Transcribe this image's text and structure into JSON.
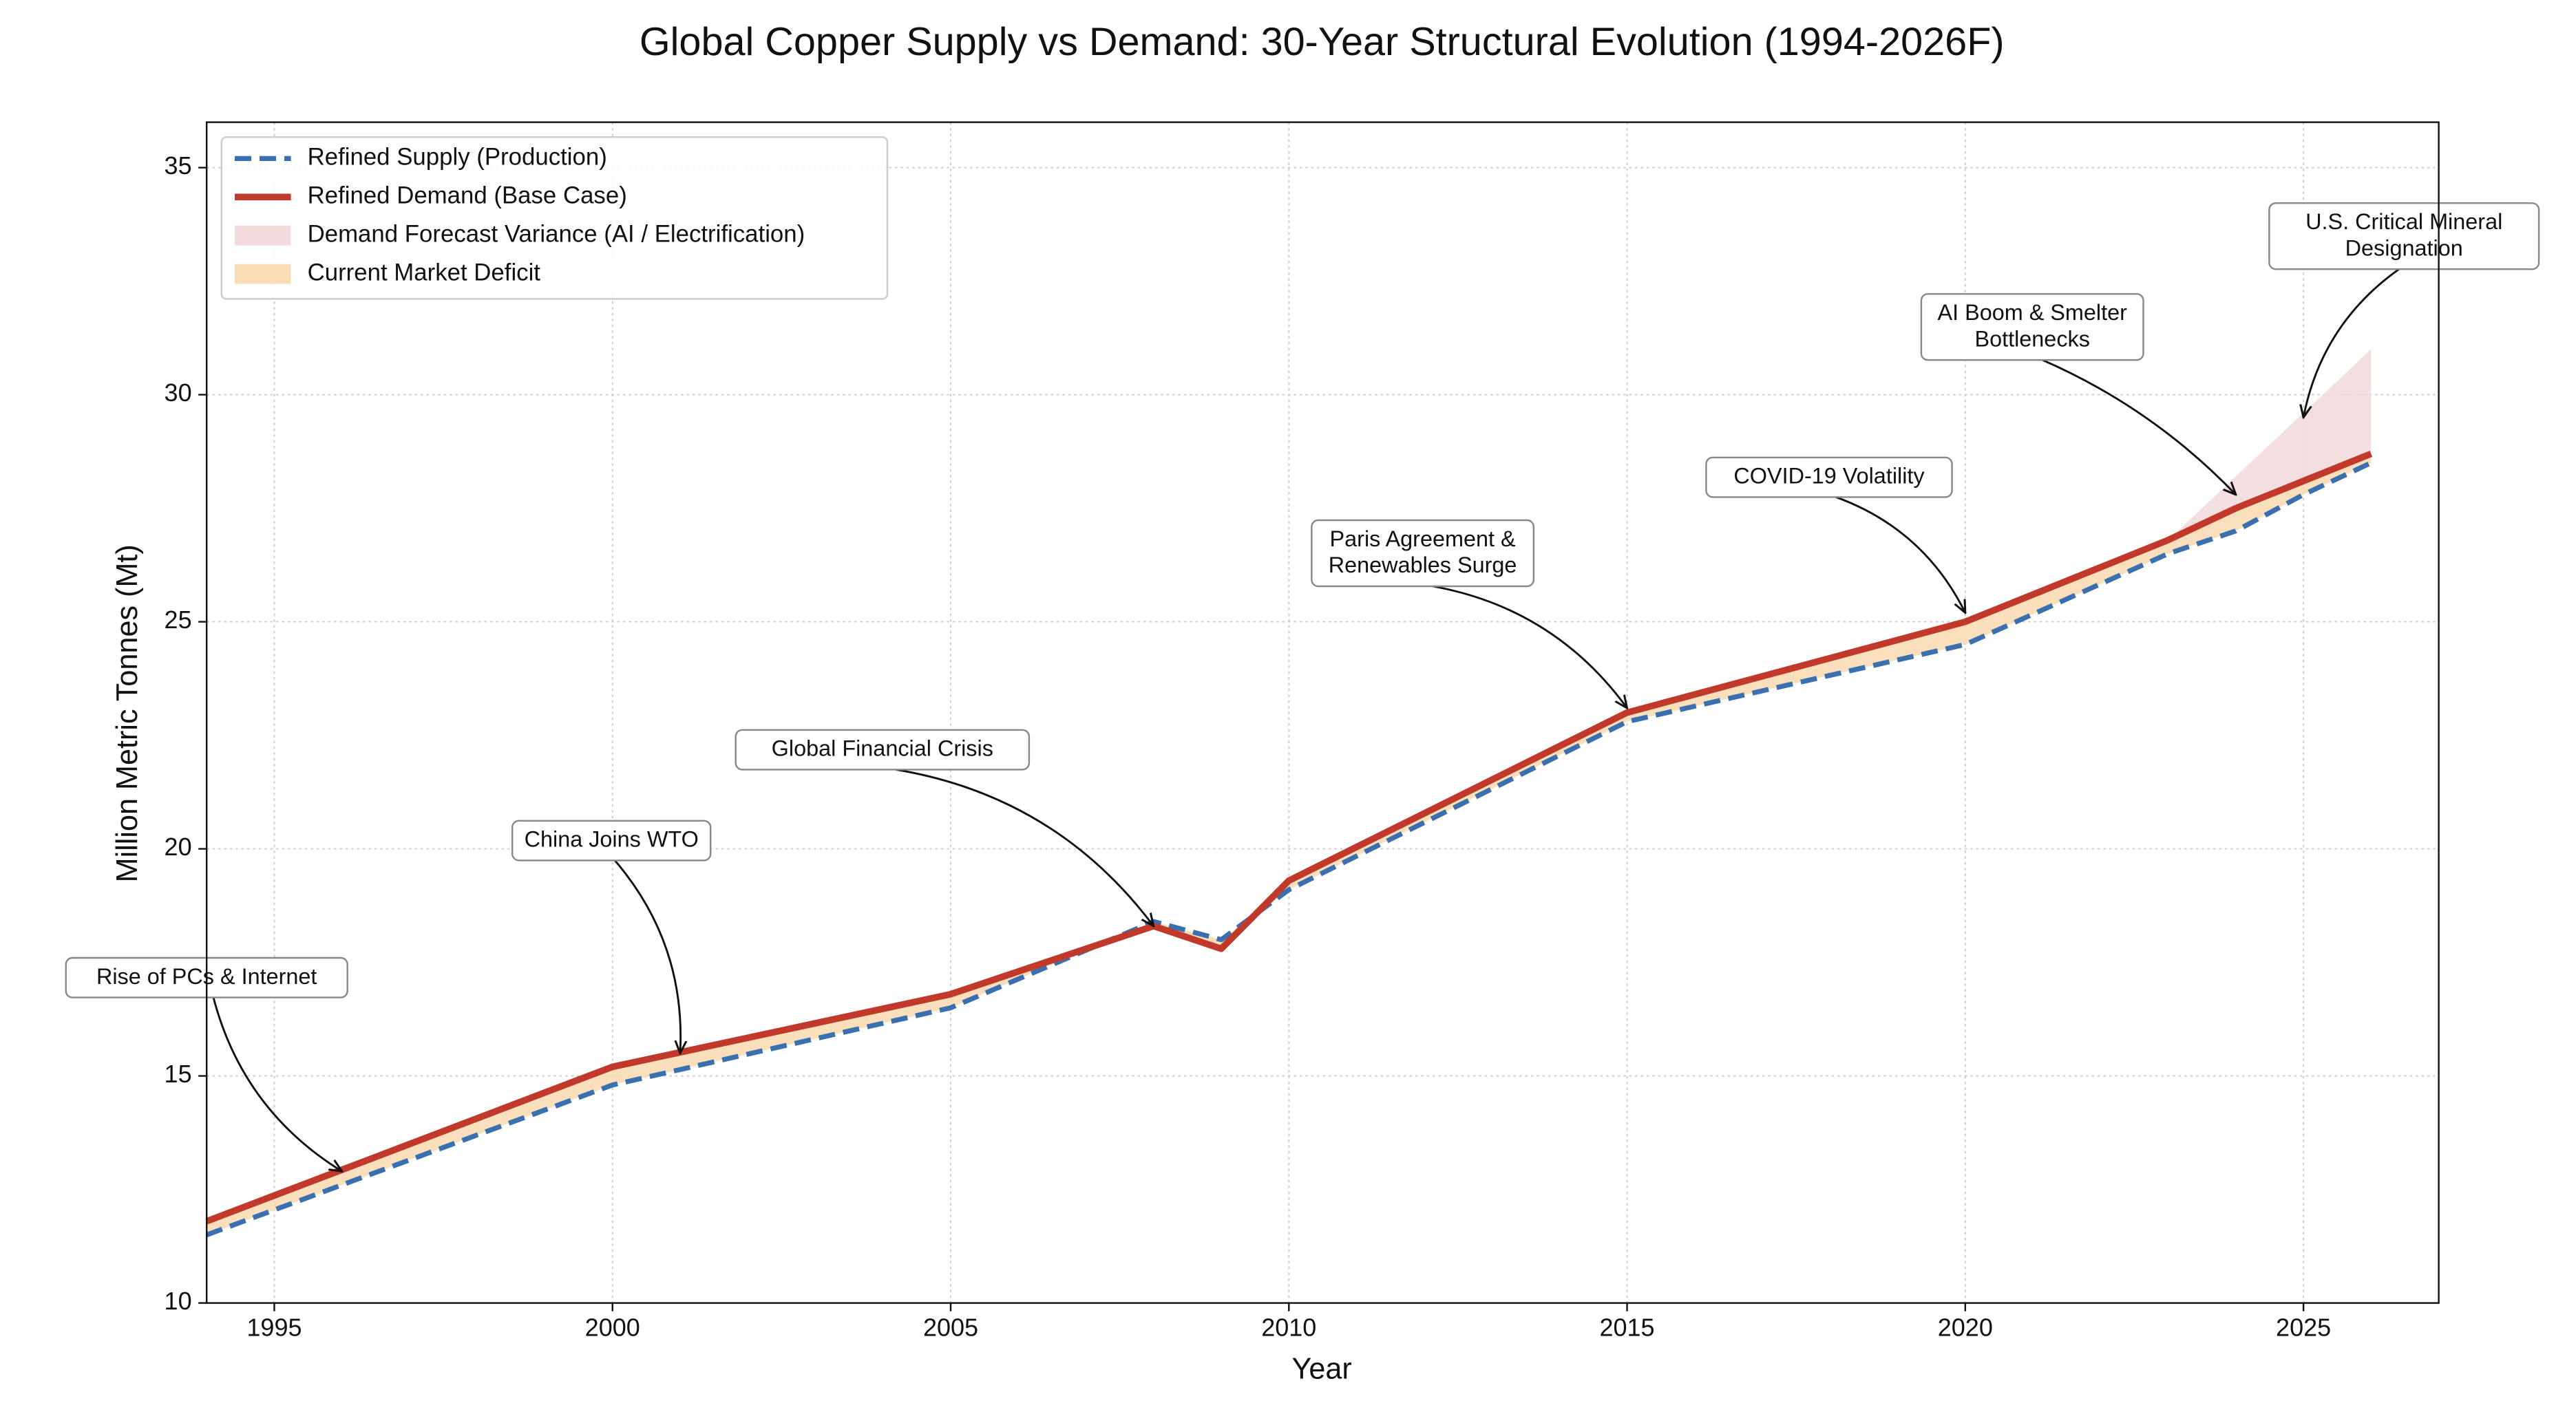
{
  "chart_data": {
    "type": "line",
    "title": "Global Copper Supply vs Demand: 30-Year Structural Evolution (1994-2026F)",
    "x_label": "Year",
    "y_label": "Million Metric Tonnes (Mt)",
    "x": [
      1994,
      2000,
      2005,
      2008,
      2009,
      2010,
      2015,
      2020,
      2023,
      2024,
      2025,
      2026
    ],
    "series": [
      {
        "name": "Refined Supply (Production)",
        "color": "#3a6fb0",
        "dashed": true,
        "values": [
          11.5,
          14.8,
          16.5,
          18.4,
          18.0,
          19.1,
          22.8,
          24.5,
          26.5,
          27.0,
          27.8,
          28.5
        ]
      },
      {
        "name": "Refined Demand (Base Case)",
        "color": "#c0392b",
        "dashed": false,
        "values": [
          11.8,
          15.2,
          16.8,
          18.3,
          17.8,
          19.3,
          23.0,
          25.0,
          26.8,
          27.5,
          28.1,
          28.7
        ]
      }
    ],
    "fills": [
      {
        "name": "Demand Forecast Variance (AI / Electrification)",
        "color": "#f2dadd",
        "upper": [
          null,
          null,
          null,
          null,
          null,
          null,
          null,
          null,
          26.8,
          28.2,
          29.6,
          31.0
        ]
      },
      {
        "name": "Current Market Deficit",
        "color": "#f9dcb5"
      }
    ],
    "annotations": [
      {
        "text": [
          "Rise of PCs & Internet"
        ],
        "xy": [
          1996,
          12.9
        ]
      },
      {
        "text": [
          "China Joins WTO"
        ],
        "xy": [
          2001,
          15.5
        ]
      },
      {
        "text": [
          "Global Financial Crisis"
        ],
        "xy": [
          2008,
          18.3
        ]
      },
      {
        "text": [
          "Paris Agreement &",
          "Renewables Surge"
        ],
        "xy": [
          2015,
          23.1
        ]
      },
      {
        "text": [
          "COVID-19 Volatility"
        ],
        "xy": [
          2020,
          25.2
        ]
      },
      {
        "text": [
          "AI Boom & Smelter",
          "Bottlenecks"
        ],
        "xy": [
          2024,
          27.8
        ]
      },
      {
        "text": [
          "U.S. Critical Mineral",
          "Designation"
        ],
        "xy": [
          2025,
          29.5
        ]
      }
    ],
    "xlim": [
      1994,
      2027
    ],
    "ylim": [
      10,
      36
    ],
    "xticks": [
      1995,
      2000,
      2005,
      2010,
      2015,
      2020,
      2025
    ],
    "yticks": [
      10,
      15,
      20,
      25,
      30,
      35
    ],
    "grid": true,
    "legend": "upper left"
  }
}
